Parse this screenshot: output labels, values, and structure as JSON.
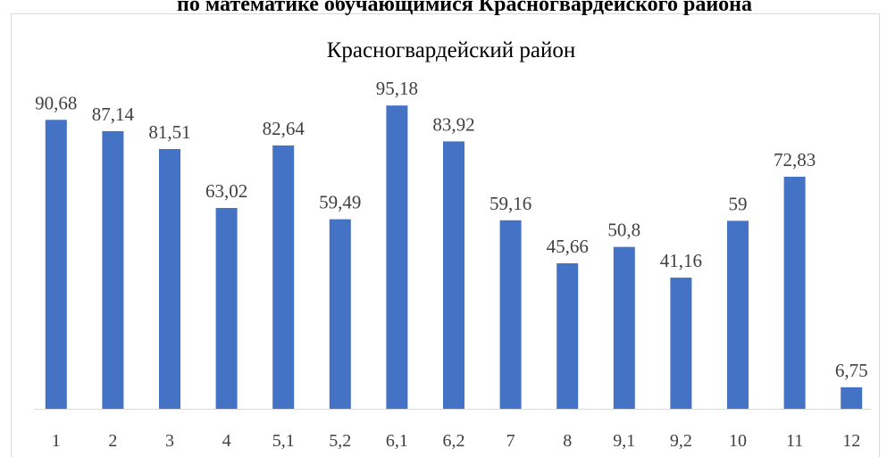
{
  "header": {
    "title": "по математике обучающимися Красногвардейского района"
  },
  "chart_data": {
    "type": "bar",
    "title": "Красногвардейский район",
    "categories": [
      "1",
      "2",
      "3",
      "4",
      "5,1",
      "5,2",
      "6,1",
      "6,2",
      "7",
      "8",
      "9,1",
      "9,2",
      "10",
      "11",
      "12"
    ],
    "values": [
      90.68,
      87.14,
      81.51,
      63.02,
      82.64,
      59.49,
      95.18,
      83.92,
      59.16,
      45.66,
      50.8,
      41.16,
      59,
      72.83,
      6.75
    ],
    "value_labels": [
      "90,68",
      "87,14",
      "81,51",
      "63,02",
      "82,64",
      "59,49",
      "95,18",
      "83,92",
      "59,16",
      "45,66",
      "50,8",
      "41,16",
      "59",
      "72,83",
      "6,75"
    ],
    "color": "#4472c4",
    "ylim": [
      0,
      100
    ]
  }
}
